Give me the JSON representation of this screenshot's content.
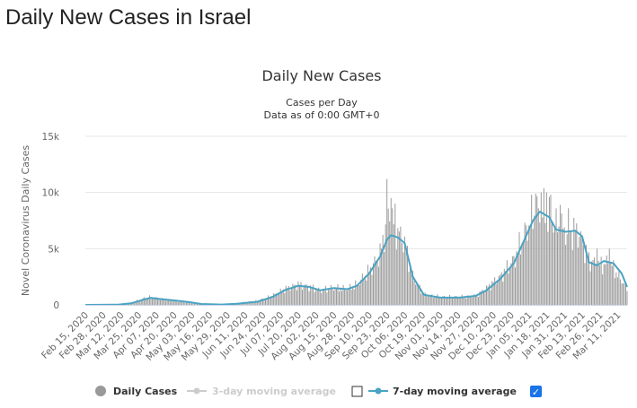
{
  "page": {
    "heading": "Daily New Cases in Israel"
  },
  "chart_data": {
    "type": "bar",
    "title": "Daily New Cases",
    "subtitle": "Cases per Day",
    "subtitle2": "Data as of 0:00 GMT+0",
    "ylabel": "Novel Coronavirus Daily Cases",
    "ylim": [
      0,
      15000
    ],
    "yticks": [
      0,
      5000,
      10000,
      15000
    ],
    "ytick_labels": [
      "0",
      "5k",
      "10k",
      "15k"
    ],
    "x_start": "2020-02-15",
    "x_end": "2021-03-18",
    "xtick_labels": [
      "Feb 15, 2020",
      "Feb 28, 2020",
      "Mar 12, 2020",
      "Mar 25, 2020",
      "Apr 07, 2020",
      "Apr 20, 2020",
      "May 03, 2020",
      "May 16, 2020",
      "May 29, 2020",
      "Jun 11, 2020",
      "Jun 24, 2020",
      "Jul 07, 2020",
      "Jul 20, 2020",
      "Aug 02, 2020",
      "Aug 15, 2020",
      "Aug 28, 2020",
      "Sep 10, 2020",
      "Sep 23, 2020",
      "Oct 06, 2020",
      "Oct 19, 2020",
      "Nov 01, 2020",
      "Nov 14, 2020",
      "Nov 27, 2020",
      "Dec 10, 2020",
      "Dec 23, 2020",
      "Jan 05, 2021",
      "Jan 18, 2021",
      "Jan 31, 2021",
      "Feb 13, 2021",
      "Feb 26, 2021",
      "Mar 11, 2021"
    ],
    "grid": true,
    "legend_position": "bottom-center",
    "series": [
      {
        "name": "Daily Cases",
        "type": "bar",
        "color": "#999999",
        "anchors": [
          [
            "2020-02-15",
            0
          ],
          [
            "2020-03-10",
            20
          ],
          [
            "2020-03-20",
            200
          ],
          [
            "2020-03-28",
            550
          ],
          [
            "2020-04-03",
            700
          ],
          [
            "2020-04-10",
            500
          ],
          [
            "2020-04-20",
            350
          ],
          [
            "2020-05-01",
            200
          ],
          [
            "2020-05-10",
            50
          ],
          [
            "2020-05-25",
            30
          ],
          [
            "2020-06-05",
            150
          ],
          [
            "2020-06-20",
            350
          ],
          [
            "2020-07-01",
            800
          ],
          [
            "2020-07-10",
            1400
          ],
          [
            "2020-07-20",
            1800
          ],
          [
            "2020-07-28",
            1600
          ],
          [
            "2020-08-05",
            1300
          ],
          [
            "2020-08-15",
            1500
          ],
          [
            "2020-08-25",
            1400
          ],
          [
            "2020-09-01",
            1800
          ],
          [
            "2020-09-10",
            3000
          ],
          [
            "2020-09-18",
            4500
          ],
          [
            "2020-09-24",
            8000
          ],
          [
            "2020-10-01",
            6500
          ],
          [
            "2020-10-06",
            5500
          ],
          [
            "2020-10-12",
            2500
          ],
          [
            "2020-10-20",
            900
          ],
          [
            "2020-11-01",
            700
          ],
          [
            "2020-11-15",
            700
          ],
          [
            "2020-11-27",
            800
          ],
          [
            "2020-12-05",
            1500
          ],
          [
            "2020-12-15",
            2500
          ],
          [
            "2020-12-25",
            4000
          ],
          [
            "2021-01-01",
            6000
          ],
          [
            "2021-01-08",
            8000
          ],
          [
            "2021-01-18",
            8300
          ],
          [
            "2021-01-25",
            7000
          ],
          [
            "2021-02-01",
            6500
          ],
          [
            "2021-02-10",
            6500
          ],
          [
            "2021-02-18",
            4000
          ],
          [
            "2021-02-26",
            3500
          ],
          [
            "2021-03-05",
            3800
          ],
          [
            "2021-03-12",
            2500
          ],
          [
            "2021-03-18",
            1500
          ]
        ],
        "spikes": [
          [
            "2020-09-23",
            11200
          ],
          [
            "2020-09-26",
            9500
          ],
          [
            "2020-09-29",
            9000
          ],
          [
            "2021-01-10",
            9900
          ],
          [
            "2021-01-14",
            10000
          ],
          [
            "2021-01-18",
            10000
          ],
          [
            "2021-01-21",
            9800
          ],
          [
            "2021-01-28",
            8900
          ],
          [
            "2021-02-03",
            8600
          ],
          [
            "2021-02-24",
            5000
          ],
          [
            "2021-03-05",
            5000
          ]
        ]
      },
      {
        "name": "3-day moving average",
        "visible": false,
        "color": "#cccccc"
      },
      {
        "name": "7-day moving average",
        "type": "line",
        "color": "#4aa3c3",
        "visible": true,
        "points": [
          [
            "2020-02-15",
            0
          ],
          [
            "2020-03-10",
            20
          ],
          [
            "2020-03-20",
            150
          ],
          [
            "2020-03-28",
            450
          ],
          [
            "2020-04-03",
            630
          ],
          [
            "2020-04-10",
            520
          ],
          [
            "2020-04-20",
            400
          ],
          [
            "2020-05-01",
            250
          ],
          [
            "2020-05-10",
            80
          ],
          [
            "2020-05-25",
            30
          ],
          [
            "2020-06-05",
            100
          ],
          [
            "2020-06-20",
            280
          ],
          [
            "2020-07-01",
            700
          ],
          [
            "2020-07-10",
            1300
          ],
          [
            "2020-07-20",
            1700
          ],
          [
            "2020-07-28",
            1600
          ],
          [
            "2020-08-05",
            1300
          ],
          [
            "2020-08-15",
            1500
          ],
          [
            "2020-08-25",
            1400
          ],
          [
            "2020-09-01",
            1700
          ],
          [
            "2020-09-10",
            2800
          ],
          [
            "2020-09-18",
            4300
          ],
          [
            "2020-09-23",
            5800
          ],
          [
            "2020-09-26",
            6200
          ],
          [
            "2020-10-01",
            6000
          ],
          [
            "2020-10-06",
            5500
          ],
          [
            "2020-10-12",
            2500
          ],
          [
            "2020-10-20",
            900
          ],
          [
            "2020-11-01",
            650
          ],
          [
            "2020-11-15",
            650
          ],
          [
            "2020-11-27",
            800
          ],
          [
            "2020-12-05",
            1300
          ],
          [
            "2020-12-15",
            2300
          ],
          [
            "2020-12-25",
            3700
          ],
          [
            "2021-01-01",
            5600
          ],
          [
            "2021-01-08",
            7500
          ],
          [
            "2021-01-13",
            8300
          ],
          [
            "2021-01-20",
            7800
          ],
          [
            "2021-01-25",
            6700
          ],
          [
            "2021-02-01",
            6500
          ],
          [
            "2021-02-08",
            6600
          ],
          [
            "2021-02-13",
            6100
          ],
          [
            "2021-02-18",
            3800
          ],
          [
            "2021-02-24",
            3500
          ],
          [
            "2021-03-01",
            3900
          ],
          [
            "2021-03-08",
            3700
          ],
          [
            "2021-03-14",
            2800
          ],
          [
            "2021-03-18",
            1600
          ]
        ]
      }
    ],
    "legend": {
      "daily_cases": "Daily Cases",
      "ma3": "3-day moving average",
      "ma7": "7-day moving average",
      "ma3_checked": false,
      "ma7_checked": true,
      "ma7_checkmark": "✓"
    }
  }
}
